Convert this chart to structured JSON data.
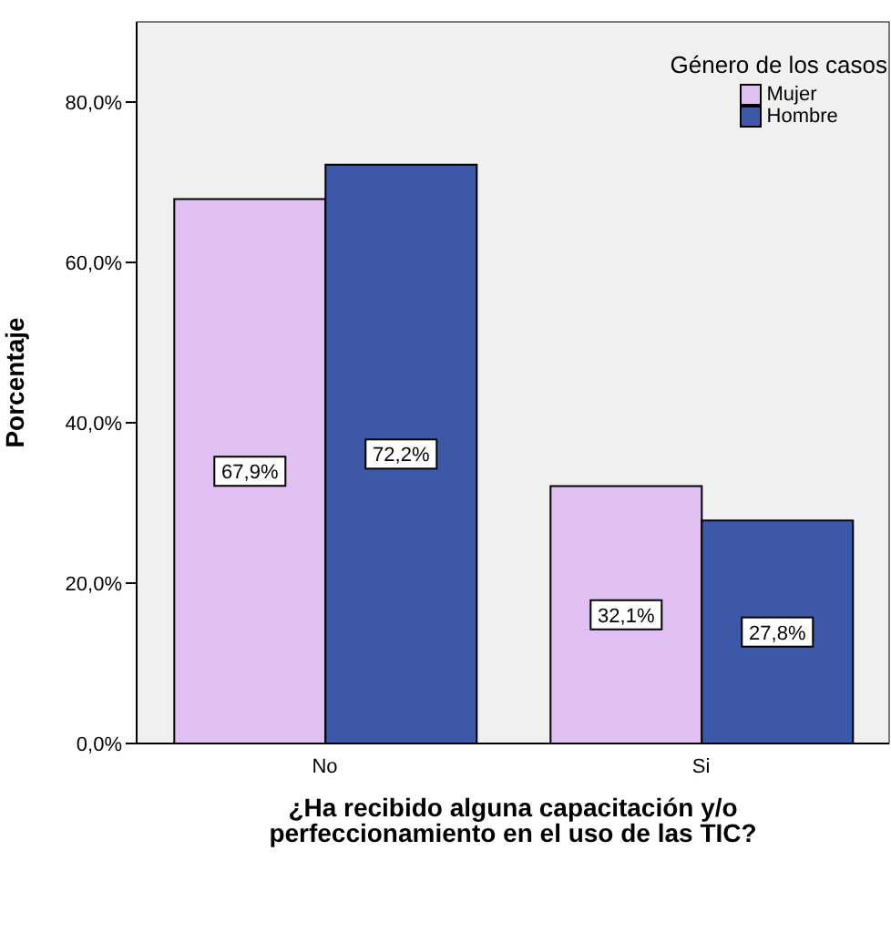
{
  "chart_data": {
    "type": "bar",
    "ylabel": "Porcentaje",
    "xlabel": "¿Ha recibido alguna capacitación y/o perfeccionamiento en el uso de las TIC?",
    "legend_title": "Género de los casos",
    "categories": [
      "No",
      "Si"
    ],
    "series": [
      {
        "name": "Mujer",
        "color": "#e0bff2",
        "values": [
          67.9,
          32.1
        ],
        "value_labels": [
          "67,9%",
          "32,1%"
        ]
      },
      {
        "name": "Hombre",
        "color": "#3e58a8",
        "values": [
          72.2,
          27.8
        ],
        "value_labels": [
          "72,2%",
          "27,8%"
        ]
      }
    ],
    "ylim": [
      0,
      90
    ],
    "yticks": [
      {
        "value": 0,
        "label": "0,0%"
      },
      {
        "value": 20,
        "label": "20,0%"
      },
      {
        "value": 40,
        "label": "40,0%"
      },
      {
        "value": 60,
        "label": "60,0%"
      },
      {
        "value": 80,
        "label": "80,0%"
      }
    ],
    "legend": "top right"
  }
}
